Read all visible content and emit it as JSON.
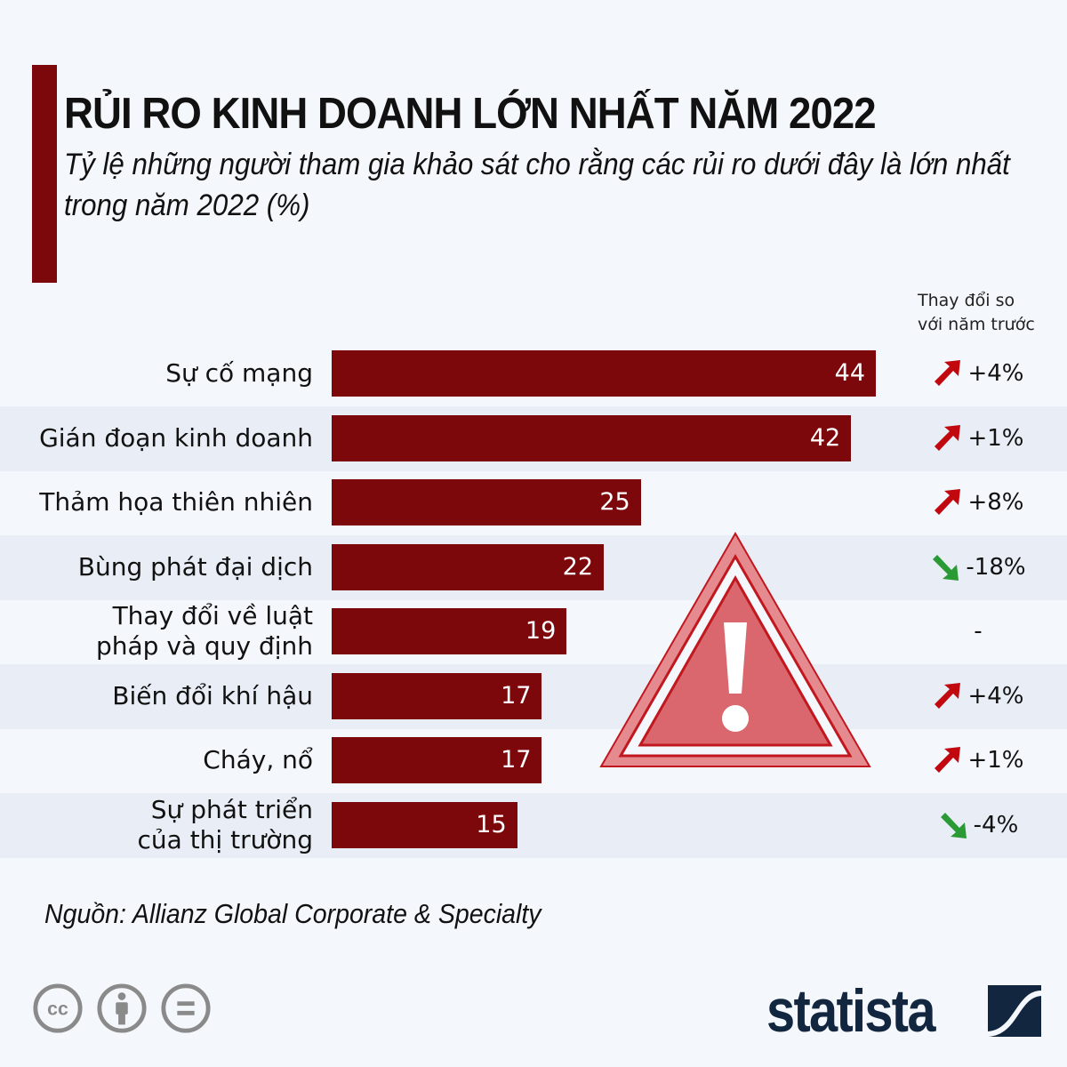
{
  "chart_data": {
    "type": "bar",
    "orientation": "horizontal",
    "title": "RỦI RO KINH DOANH LỚN NHẤT NĂM 2022",
    "subtitle": "Tỷ lệ những người tham gia khảo sát cho rằng các rủi ro dưới đây là lớn nhất trong năm 2022 (%)",
    "categories": [
      "Sự cố mạng",
      "Gián đoạn kinh doanh",
      "Thảm họa thiên nhiên",
      "Bùng phát đại dịch",
      "Thay đổi về luật\npháp và quy định",
      "Biến đổi khí hậu",
      "Cháy, nổ",
      "Sự phát triển\ncủa thị trường"
    ],
    "values": [
      44,
      42,
      25,
      22,
      19,
      17,
      17,
      15
    ],
    "change_header": "Thay đổi so\nvới năm trước",
    "changes": [
      {
        "text": "+4%",
        "dir": "up"
      },
      {
        "text": "+1%",
        "dir": "up"
      },
      {
        "text": "+8%",
        "dir": "up"
      },
      {
        "text": "-18%",
        "dir": "down"
      },
      {
        "text": "-",
        "dir": "none"
      },
      {
        "text": "+4%",
        "dir": "up"
      },
      {
        "text": "+1%",
        "dir": "up"
      },
      {
        "text": "-4%",
        "dir": "down"
      }
    ],
    "xlim": [
      0,
      44
    ],
    "grid": false,
    "colors": {
      "bar": "#7d080b",
      "up": "#c0080e",
      "down": "#2a9a34",
      "stripe": "#e9eef6",
      "background": "#f4f7fb"
    }
  },
  "source": "Nguồn: Allianz Global Corporate & Specialty",
  "license_icons": [
    "cc-icon",
    "by-icon",
    "nd-icon"
  ],
  "logo": "statista"
}
